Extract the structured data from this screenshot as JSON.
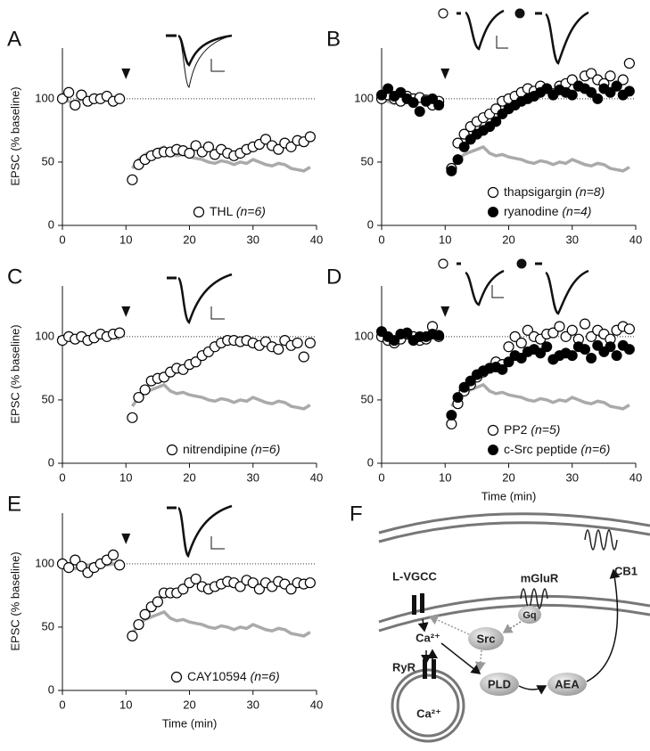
{
  "chart_data": [
    {
      "type": "scatter",
      "label": "A",
      "ylabel": "EPSC (% baseline)",
      "x": [
        0,
        1,
        2,
        3,
        4,
        5,
        6,
        7,
        8,
        9,
        10,
        11,
        12,
        13,
        14,
        15,
        16,
        17,
        18,
        19,
        20,
        21,
        22,
        23,
        24,
        25,
        26,
        27,
        28,
        29,
        30,
        31,
        32,
        33,
        34,
        35,
        36,
        37,
        38,
        39
      ],
      "xlim": [
        0,
        40
      ],
      "xticks": [
        0,
        10,
        20,
        30,
        40
      ],
      "ylim": [
        0,
        140
      ],
      "yticks": [
        0,
        50,
        100
      ],
      "hline": 100,
      "arrow_x": 10,
      "series": [
        {
          "color": "#aaaaaa",
          "style": "line",
          "values": [
            100,
            98,
            96,
            100,
            99,
            100,
            101,
            99,
            100,
            98,
            null,
            45,
            52,
            56,
            58,
            60,
            62,
            57,
            55,
            56,
            54,
            53,
            52,
            50,
            49,
            51,
            50,
            48,
            50,
            49,
            52,
            50,
            48,
            47,
            49,
            48,
            45,
            44,
            43,
            46
          ]
        },
        {
          "name": "THL",
          "n": "(n=6)",
          "color": "#000000",
          "style": "open",
          "values": [
            100,
            105,
            95,
            103,
            98,
            100,
            100,
            102,
            98,
            100,
            null,
            36,
            48,
            52,
            55,
            57,
            58,
            58,
            60,
            59,
            57,
            63,
            58,
            62,
            56,
            60,
            57,
            55,
            57,
            60,
            62,
            64,
            68,
            63,
            60,
            65,
            62,
            67,
            66,
            70
          ]
        }
      ]
    },
    {
      "type": "scatter",
      "label": "B",
      "x": [
        0,
        1,
        2,
        3,
        4,
        5,
        6,
        7,
        8,
        9,
        10,
        11,
        12,
        13,
        14,
        15,
        16,
        17,
        18,
        19,
        20,
        21,
        22,
        23,
        24,
        25,
        26,
        27,
        28,
        29,
        30,
        31,
        32,
        33,
        34,
        35,
        36,
        37,
        38,
        39
      ],
      "xlim": [
        0,
        40
      ],
      "xticks": [
        0,
        10,
        20,
        30,
        40
      ],
      "ylim": [
        0,
        140
      ],
      "yticks": [
        0,
        50,
        100
      ],
      "hline": 100,
      "arrow_x": 10,
      "series": [
        {
          "color": "#aaaaaa",
          "style": "line",
          "values": [
            100,
            98,
            96,
            100,
            99,
            100,
            101,
            99,
            100,
            98,
            null,
            45,
            52,
            56,
            58,
            60,
            62,
            57,
            55,
            56,
            54,
            53,
            52,
            50,
            49,
            51,
            50,
            48,
            50,
            49,
            52,
            50,
            48,
            47,
            49,
            48,
            45,
            44,
            43,
            46
          ]
        },
        {
          "name": "thapsigargin",
          "n": "(n=8)",
          "color": "#000000",
          "style": "open",
          "values": [
            100,
            103,
            100,
            98,
            102,
            100,
            101,
            99,
            95,
            98,
            null,
            45,
            65,
            72,
            78,
            82,
            85,
            88,
            92,
            98,
            100,
            102,
            105,
            108,
            106,
            110,
            108,
            104,
            110,
            112,
            115,
            110,
            118,
            120,
            115,
            112,
            118,
            110,
            115,
            128
          ]
        },
        {
          "name": "ryanodine",
          "n": "(n=4)",
          "color": "#000000",
          "style": "filled",
          "values": [
            103,
            108,
            102,
            105,
            100,
            97,
            90,
            98,
            100,
            95,
            null,
            43,
            52,
            62,
            68,
            72,
            75,
            78,
            82,
            88,
            92,
            95,
            98,
            100,
            102,
            105,
            108,
            103,
            107,
            105,
            103,
            110,
            108,
            105,
            100,
            108,
            105,
            110,
            103,
            106
          ]
        }
      ]
    },
    {
      "type": "scatter",
      "label": "C",
      "ylabel": "EPSC (% baseline)",
      "x": [
        0,
        1,
        2,
        3,
        4,
        5,
        6,
        7,
        8,
        9,
        10,
        11,
        12,
        13,
        14,
        15,
        16,
        17,
        18,
        19,
        20,
        21,
        22,
        23,
        24,
        25,
        26,
        27,
        28,
        29,
        30,
        31,
        32,
        33,
        34,
        35,
        36,
        37,
        38,
        39
      ],
      "xlim": [
        0,
        40
      ],
      "xticks": [
        0,
        10,
        20,
        30,
        40
      ],
      "ylim": [
        0,
        140
      ],
      "yticks": [
        0,
        50,
        100
      ],
      "hline": 100,
      "arrow_x": 10,
      "series": [
        {
          "color": "#aaaaaa",
          "style": "line",
          "values": [
            100,
            98,
            96,
            100,
            99,
            100,
            101,
            99,
            100,
            98,
            null,
            45,
            52,
            56,
            58,
            60,
            62,
            57,
            55,
            56,
            54,
            53,
            52,
            50,
            49,
            51,
            50,
            48,
            50,
            49,
            52,
            50,
            48,
            47,
            49,
            48,
            45,
            44,
            43,
            46
          ]
        },
        {
          "name": "nitrendipine",
          "n": "(n=6)",
          "color": "#000000",
          "style": "open",
          "values": [
            97,
            100,
            98,
            100,
            97,
            99,
            102,
            100,
            102,
            103,
            null,
            36,
            52,
            58,
            65,
            67,
            68,
            72,
            75,
            74,
            78,
            80,
            85,
            88,
            92,
            95,
            97,
            97,
            96,
            97,
            95,
            93,
            96,
            92,
            90,
            97,
            93,
            95,
            84,
            95
          ]
        }
      ]
    },
    {
      "type": "scatter",
      "label": "D",
      "xlabel": "Time (min)",
      "x": [
        0,
        1,
        2,
        3,
        4,
        5,
        6,
        7,
        8,
        9,
        10,
        11,
        12,
        13,
        14,
        15,
        16,
        17,
        18,
        19,
        20,
        21,
        22,
        23,
        24,
        25,
        26,
        27,
        28,
        29,
        30,
        31,
        32,
        33,
        34,
        35,
        36,
        37,
        38,
        39
      ],
      "xlim": [
        0,
        40
      ],
      "xticks": [
        0,
        10,
        20,
        30,
        40
      ],
      "ylim": [
        0,
        140
      ],
      "yticks": [
        0,
        50,
        100
      ],
      "hline": 100,
      "arrow_x": 10,
      "series": [
        {
          "color": "#aaaaaa",
          "style": "line",
          "values": [
            100,
            98,
            96,
            100,
            99,
            100,
            101,
            99,
            100,
            98,
            null,
            45,
            52,
            56,
            58,
            60,
            62,
            57,
            55,
            56,
            54,
            53,
            52,
            50,
            49,
            51,
            50,
            48,
            50,
            49,
            52,
            50,
            48,
            47,
            49,
            48,
            45,
            44,
            43,
            46
          ]
        },
        {
          "name": "PP2",
          "n": "(n=5)",
          "color": "#000000",
          "style": "open",
          "values": [
            100,
            97,
            95,
            98,
            102,
            100,
            97,
            98,
            108,
            100,
            null,
            31,
            47,
            57,
            62,
            68,
            72,
            75,
            80,
            78,
            92,
            100,
            95,
            105,
            100,
            98,
            102,
            103,
            108,
            100,
            105,
            98,
            110,
            100,
            105,
            102,
            98,
            105,
            108,
            106
          ]
        },
        {
          "name": "c-Src peptide",
          "n": "(n=6)",
          "color": "#000000",
          "style": "filled",
          "values": [
            104,
            100,
            97,
            102,
            103,
            97,
            100,
            100,
            102,
            101,
            null,
            38,
            52,
            60,
            65,
            70,
            73,
            75,
            76,
            74,
            80,
            85,
            83,
            88,
            90,
            87,
            92,
            82,
            85,
            87,
            85,
            92,
            90,
            83,
            93,
            88,
            92,
            85,
            93,
            90
          ]
        }
      ]
    },
    {
      "type": "scatter",
      "label": "E",
      "ylabel": "EPSC (% baseline)",
      "xlabel": "Time (min)",
      "x": [
        0,
        1,
        2,
        3,
        4,
        5,
        6,
        7,
        8,
        9,
        10,
        11,
        12,
        13,
        14,
        15,
        16,
        17,
        18,
        19,
        20,
        21,
        22,
        23,
        24,
        25,
        26,
        27,
        28,
        29,
        30,
        31,
        32,
        33,
        34,
        35,
        36,
        37,
        38,
        39
      ],
      "xlim": [
        0,
        40
      ],
      "xticks": [
        0,
        10,
        20,
        30,
        40
      ],
      "ylim": [
        0,
        140
      ],
      "yticks": [
        0,
        50,
        100
      ],
      "hline": 100,
      "arrow_x": 10,
      "series": [
        {
          "color": "#aaaaaa",
          "style": "line",
          "values": [
            100,
            98,
            96,
            100,
            99,
            100,
            101,
            99,
            100,
            98,
            null,
            45,
            52,
            56,
            58,
            60,
            62,
            57,
            55,
            56,
            54,
            53,
            52,
            50,
            49,
            51,
            50,
            48,
            50,
            49,
            52,
            50,
            48,
            47,
            49,
            48,
            45,
            44,
            43,
            46
          ]
        },
        {
          "name": "CAY10594",
          "n": "(n=6)",
          "color": "#000000",
          "style": "open",
          "values": [
            100,
            97,
            103,
            98,
            93,
            97,
            100,
            103,
            107,
            99,
            null,
            43,
            52,
            60,
            66,
            70,
            77,
            77,
            77,
            80,
            85,
            88,
            82,
            80,
            82,
            84,
            86,
            85,
            82,
            87,
            85,
            80,
            85,
            82,
            86,
            84,
            80,
            85,
            84,
            85
          ]
        }
      ]
    }
  ],
  "diagram": {
    "label": "F",
    "nodes": [
      "L-VGCC",
      "mGluR",
      "CB1",
      "Gq",
      "Src",
      "Ca²⁺",
      "RyR",
      "PLD",
      "AEA",
      "Ca²⁺"
    ]
  }
}
